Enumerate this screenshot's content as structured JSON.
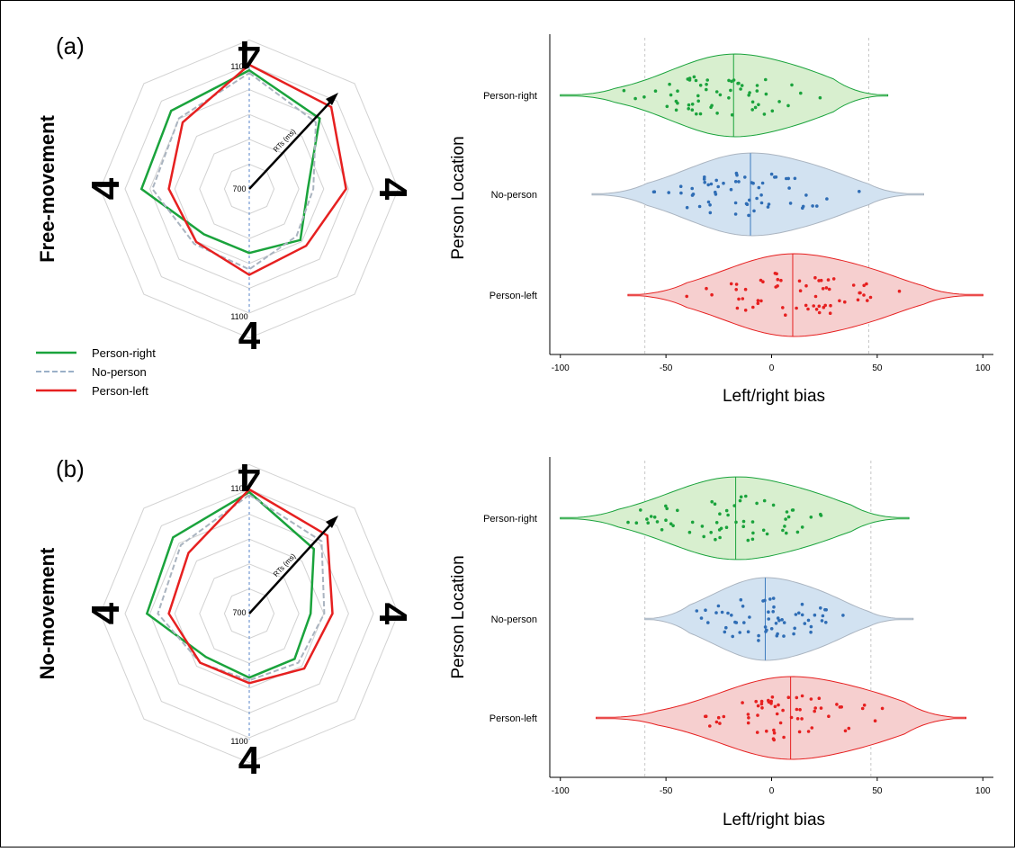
{
  "panels": [
    {
      "label": "(a)",
      "condition": "Free-movement"
    },
    {
      "label": "(b)",
      "condition": "No-movement"
    }
  ],
  "radar": {
    "min_label": "700",
    "max_label": "1100",
    "axis_arrow_label": "RTs (ms)",
    "orientation_glyph": "4",
    "rings": 5,
    "range": [
      700,
      1100
    ]
  },
  "legend": [
    {
      "label": "Person-right",
      "color": "#1aa33c",
      "style": "solid"
    },
    {
      "label": "No-person",
      "color": "#9ab0c8",
      "style": "dashed"
    },
    {
      "label": "Person-left",
      "color": "#e62020",
      "style": "solid"
    }
  ],
  "colors": {
    "person_right": "#1aa33c",
    "no_person": "#aab4c0",
    "person_left": "#e62020",
    "violin_green_fill": "#d8efcf",
    "violin_blue_fill": "#d2e2f1",
    "violin_red_fill": "#f6cfcf"
  },
  "chart_data": [
    {
      "type": "radar",
      "panel": "(a)",
      "axes": 8,
      "range": [
        700,
        1100
      ],
      "series": [
        {
          "name": "Person-right",
          "values": [
            1080,
            1010,
            860,
            910,
            880,
            880,
            1040,
            1050
          ]
        },
        {
          "name": "No-person",
          "values": [
            1070,
            990,
            880,
            890,
            940,
            930,
            1000,
            1010
          ]
        },
        {
          "name": "Person-left",
          "values": [
            1100,
            1070,
            1000,
            940,
            960,
            920,
            940,
            990
          ]
        }
      ]
    },
    {
      "type": "violin",
      "panel": "(a)",
      "xlabel": "Left/right bias",
      "ylabel": "Person Location",
      "xlim": [
        -105,
        105
      ],
      "xticks": [
        -100,
        -50,
        0,
        50,
        100
      ],
      "reference_lines": [
        -60,
        46
      ],
      "categories": [
        "Person-right",
        "No-person",
        "Person-left"
      ],
      "series": [
        {
          "name": "Person-right",
          "median": -18,
          "range": [
            -100,
            55
          ]
        },
        {
          "name": "No-person",
          "median": -10,
          "range": [
            -85,
            72
          ]
        },
        {
          "name": "Person-left",
          "median": 10,
          "range": [
            -68,
            100
          ]
        }
      ]
    },
    {
      "type": "radar",
      "panel": "(b)",
      "axes": 8,
      "range": [
        700,
        1100
      ],
      "series": [
        {
          "name": "Person-right",
          "values": [
            1090,
            980,
            870,
            880,
            880,
            870,
            1020,
            1040
          ]
        },
        {
          "name": "No-person",
          "values": [
            1080,
            1020,
            920,
            900,
            890,
            900,
            980,
            1000
          ]
        },
        {
          "name": "Person-left",
          "values": [
            1100,
            1050,
            950,
            930,
            900,
            900,
            940,
            960
          ]
        }
      ]
    },
    {
      "type": "violin",
      "panel": "(b)",
      "xlabel": "Left/right bias",
      "ylabel": "Person Location",
      "xlim": [
        -105,
        105
      ],
      "xticks": [
        -100,
        -50,
        0,
        50,
        100
      ],
      "reference_lines": [
        -60,
        47
      ],
      "categories": [
        "Person-right",
        "No-person",
        "Person-left"
      ],
      "series": [
        {
          "name": "Person-right",
          "median": -17,
          "range": [
            -100,
            65
          ]
        },
        {
          "name": "No-person",
          "median": -3,
          "range": [
            -60,
            67
          ]
        },
        {
          "name": "Person-left",
          "median": 9,
          "range": [
            -83,
            92
          ]
        }
      ]
    }
  ]
}
